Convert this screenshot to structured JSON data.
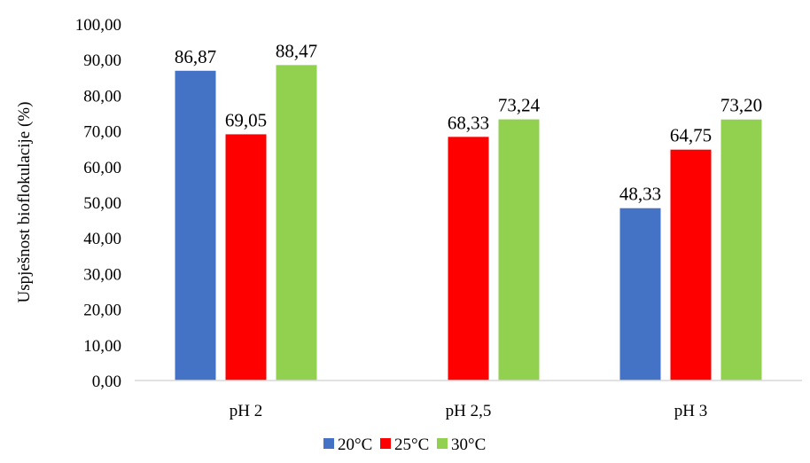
{
  "chart_data": {
    "type": "bar",
    "title": "",
    "xlabel": "",
    "ylabel": "Uspješnost bioflokulacije  (%)",
    "ylim": [
      0,
      100
    ],
    "ytick_step": 10,
    "ytick_labels": [
      "0,00",
      "10,00",
      "20,00",
      "30,00",
      "40,00",
      "50,00",
      "60,00",
      "70,00",
      "80,00",
      "90,00",
      "100,00"
    ],
    "categories": [
      "pH 2",
      "pH 2,5",
      "pH 3"
    ],
    "series": [
      {
        "name": "20°C",
        "color": "#4472C4",
        "values": [
          86.87,
          null,
          48.33
        ],
        "labels": [
          "86,87",
          "",
          "48,33"
        ]
      },
      {
        "name": "25°C",
        "color": "#FF0000",
        "values": [
          69.05,
          68.33,
          64.75
        ],
        "labels": [
          "69,05",
          "68,33",
          "64,75"
        ]
      },
      {
        "name": "30°C",
        "color": "#92D050",
        "values": [
          88.47,
          73.24,
          73.2
        ],
        "labels": [
          "88,47",
          "73,24",
          "73,20"
        ]
      }
    ],
    "grid": false,
    "legend_position": "bottom"
  }
}
